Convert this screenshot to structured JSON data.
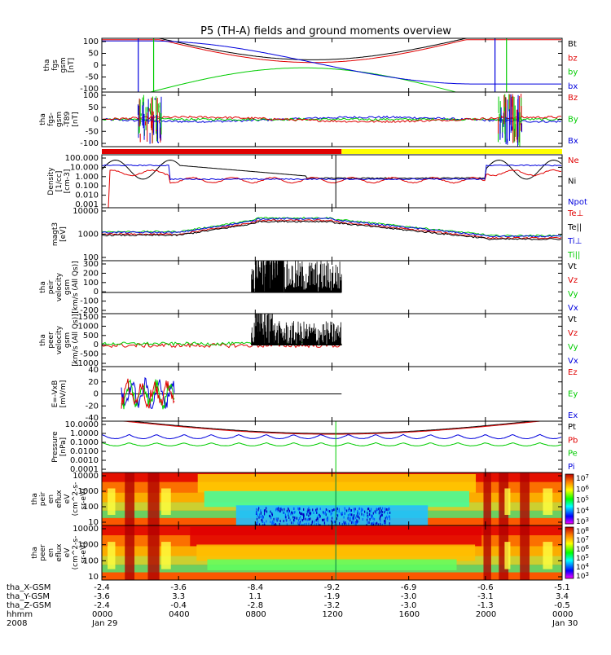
{
  "title": "P5 (TH-A) fields and ground moments overview",
  "colors": {
    "black": "#000000",
    "red": "#e00000",
    "green": "#00cc00",
    "blue": "#0000dd",
    "yellow": "#ffff00"
  },
  "chart_data": {
    "type": "line",
    "x_axis": {
      "ticks": [
        "0000",
        "0400",
        "0800",
        "1200",
        "1600",
        "2000",
        "0000"
      ],
      "dates": [
        "Jan 29",
        "",
        "",
        "",
        "",
        "",
        "Jan 30"
      ],
      "row_labels": [
        "tha_X-GSM",
        "tha_Y-GSM",
        "tha_Z-GSM",
        "hhmm",
        "2008"
      ],
      "position_rows": [
        [
          "-2.4",
          "-3.6",
          "-8.4",
          "-9.2",
          "-6.9",
          "-0.6",
          "-5.1"
        ],
        [
          "-3.6",
          "3.3",
          "1.1",
          "-1.9",
          "-3.0",
          "-3.1",
          "3.4"
        ],
        [
          "-2.4",
          "-0.4",
          "-2.8",
          "-3.2",
          "-3.0",
          "-1.3",
          "-0.5"
        ]
      ]
    },
    "panels": [
      {
        "id": "fgs",
        "ylabel": [
          "tha",
          "fgs",
          "gsm",
          "[nT]"
        ],
        "ylim": [
          -100,
          100
        ],
        "yticks": [
          "100",
          "50",
          "0",
          "-50",
          "-100"
        ],
        "legend": [
          {
            "text": "Bt",
            "color": "#000000"
          },
          {
            "text": "bz",
            "color": "#e00000"
          },
          {
            "text": "by",
            "color": "#00cc00"
          },
          {
            "text": "bx",
            "color": "#0000dd"
          }
        ]
      },
      {
        "id": "fgs-t89",
        "ylabel": [
          "tha",
          "fgs-",
          "gsm",
          "-T89",
          "[nT]"
        ],
        "ylim": [
          -100,
          100
        ],
        "yticks": [
          "100",
          "50",
          "0",
          "-50",
          "-100"
        ],
        "legend": [
          {
            "text": "Bz",
            "color": "#e00000"
          },
          {
            "text": "By",
            "color": "#00cc00"
          },
          {
            "text": "Bx",
            "color": "#0000dd"
          }
        ]
      },
      {
        "id": "density",
        "ylabel": [
          "Density",
          "[1/cc]",
          "[cm-3]"
        ],
        "log": true,
        "ylim": [
          0.001,
          100
        ],
        "yticks": [
          "100.000",
          "10.000",
          "1.000",
          "0.100",
          "0.010",
          "0.001"
        ],
        "legend": [
          {
            "text": "Ne",
            "color": "#e00000"
          },
          {
            "text": "Ni",
            "color": "#000000"
          },
          {
            "text": "Npot",
            "color": "#0000dd"
          }
        ]
      },
      {
        "id": "temperature",
        "ylabel": [
          "magt3",
          "[eV]"
        ],
        "log": true,
        "ylim": [
          20,
          10000
        ],
        "yticks": [
          "10000",
          "1000",
          "100"
        ],
        "legend": [
          {
            "text": "Te⊥",
            "color": "#e00000"
          },
          {
            "text": "Te||",
            "color": "#000000"
          },
          {
            "text": "Ti⊥",
            "color": "#0000dd"
          },
          {
            "text": "Ti||",
            "color": "#00cc00"
          }
        ]
      },
      {
        "id": "peir-velocity",
        "ylabel": [
          "tha",
          "peir",
          "velocity",
          "gsm",
          "[km/s (All Qs)]"
        ],
        "ylim": [
          -200,
          300
        ],
        "yticks": [
          "300",
          "200",
          "100",
          "0",
          "-100",
          "-200"
        ],
        "legend": [
          {
            "text": "Vt",
            "color": "#000000"
          },
          {
            "text": "Vz",
            "color": "#e00000"
          },
          {
            "text": "Vy",
            "color": "#00cc00"
          },
          {
            "text": "Vx",
            "color": "#0000dd"
          }
        ]
      },
      {
        "id": "peer-velocity",
        "ylabel": [
          "tha",
          "peer",
          "velocity",
          "gsm",
          "[km/s (All Qs)]"
        ],
        "ylim": [
          -1000,
          1500
        ],
        "yticks": [
          "1500",
          "1000",
          "500",
          "0",
          "-500",
          "-1000"
        ],
        "legend": [
          {
            "text": "Vt",
            "color": "#000000"
          },
          {
            "text": "Vz",
            "color": "#e00000"
          },
          {
            "text": "Vy",
            "color": "#00cc00"
          },
          {
            "text": "Vx",
            "color": "#0000dd"
          }
        ]
      },
      {
        "id": "efield",
        "ylabel": [
          "E=-VxB",
          "[mV/m]"
        ],
        "ylim": [
          -40,
          40
        ],
        "yticks": [
          "40",
          "20",
          "0",
          "-20",
          "-40"
        ],
        "legend": [
          {
            "text": "Ez",
            "color": "#e00000"
          },
          {
            "text": "Ey",
            "color": "#00cc00"
          },
          {
            "text": "Ex",
            "color": "#0000dd"
          }
        ]
      },
      {
        "id": "pressure",
        "ylabel": [
          "Pressure",
          "[nPa]"
        ],
        "log": true,
        "ylim": [
          0.0001,
          10
        ],
        "yticks": [
          "10.0000",
          "1.0000",
          "0.1000",
          "0.0100",
          "0.0010",
          "0.0001"
        ],
        "legend": [
          {
            "text": "Pt",
            "color": "#000000"
          },
          {
            "text": "Pb",
            "color": "#e00000"
          },
          {
            "text": "Pe",
            "color": "#00cc00"
          },
          {
            "text": "Pi",
            "color": "#0000dd"
          }
        ]
      },
      {
        "id": "peir-eflux",
        "type": "heatmap",
        "ylabel": [
          "tha",
          "peir",
          "en",
          "eflux",
          "eV",
          "(cm^2-s-",
          "sr-eV)"
        ],
        "yticks": [
          "10000",
          "1000",
          "100",
          "10"
        ],
        "colorbar": [
          "10^7",
          "10^6",
          "10^5",
          "10^4",
          "10^3"
        ]
      },
      {
        "id": "peer-eflux",
        "type": "heatmap",
        "ylabel": [
          "tha",
          "peer",
          "en",
          "eflux",
          "eV",
          "(cm^2-s-",
          "sr-eV)"
        ],
        "yticks": [
          "10000",
          "1000",
          "100",
          "10"
        ],
        "colorbar": [
          "10^8",
          "10^7",
          "10^6",
          "10^5",
          "10^4",
          "10^3"
        ]
      }
    ],
    "status_bar": [
      {
        "from": "0000",
        "to": "1230",
        "color": "#e00000"
      },
      {
        "from": "1230",
        "to": "0000",
        "color": "#ffff00"
      }
    ]
  }
}
